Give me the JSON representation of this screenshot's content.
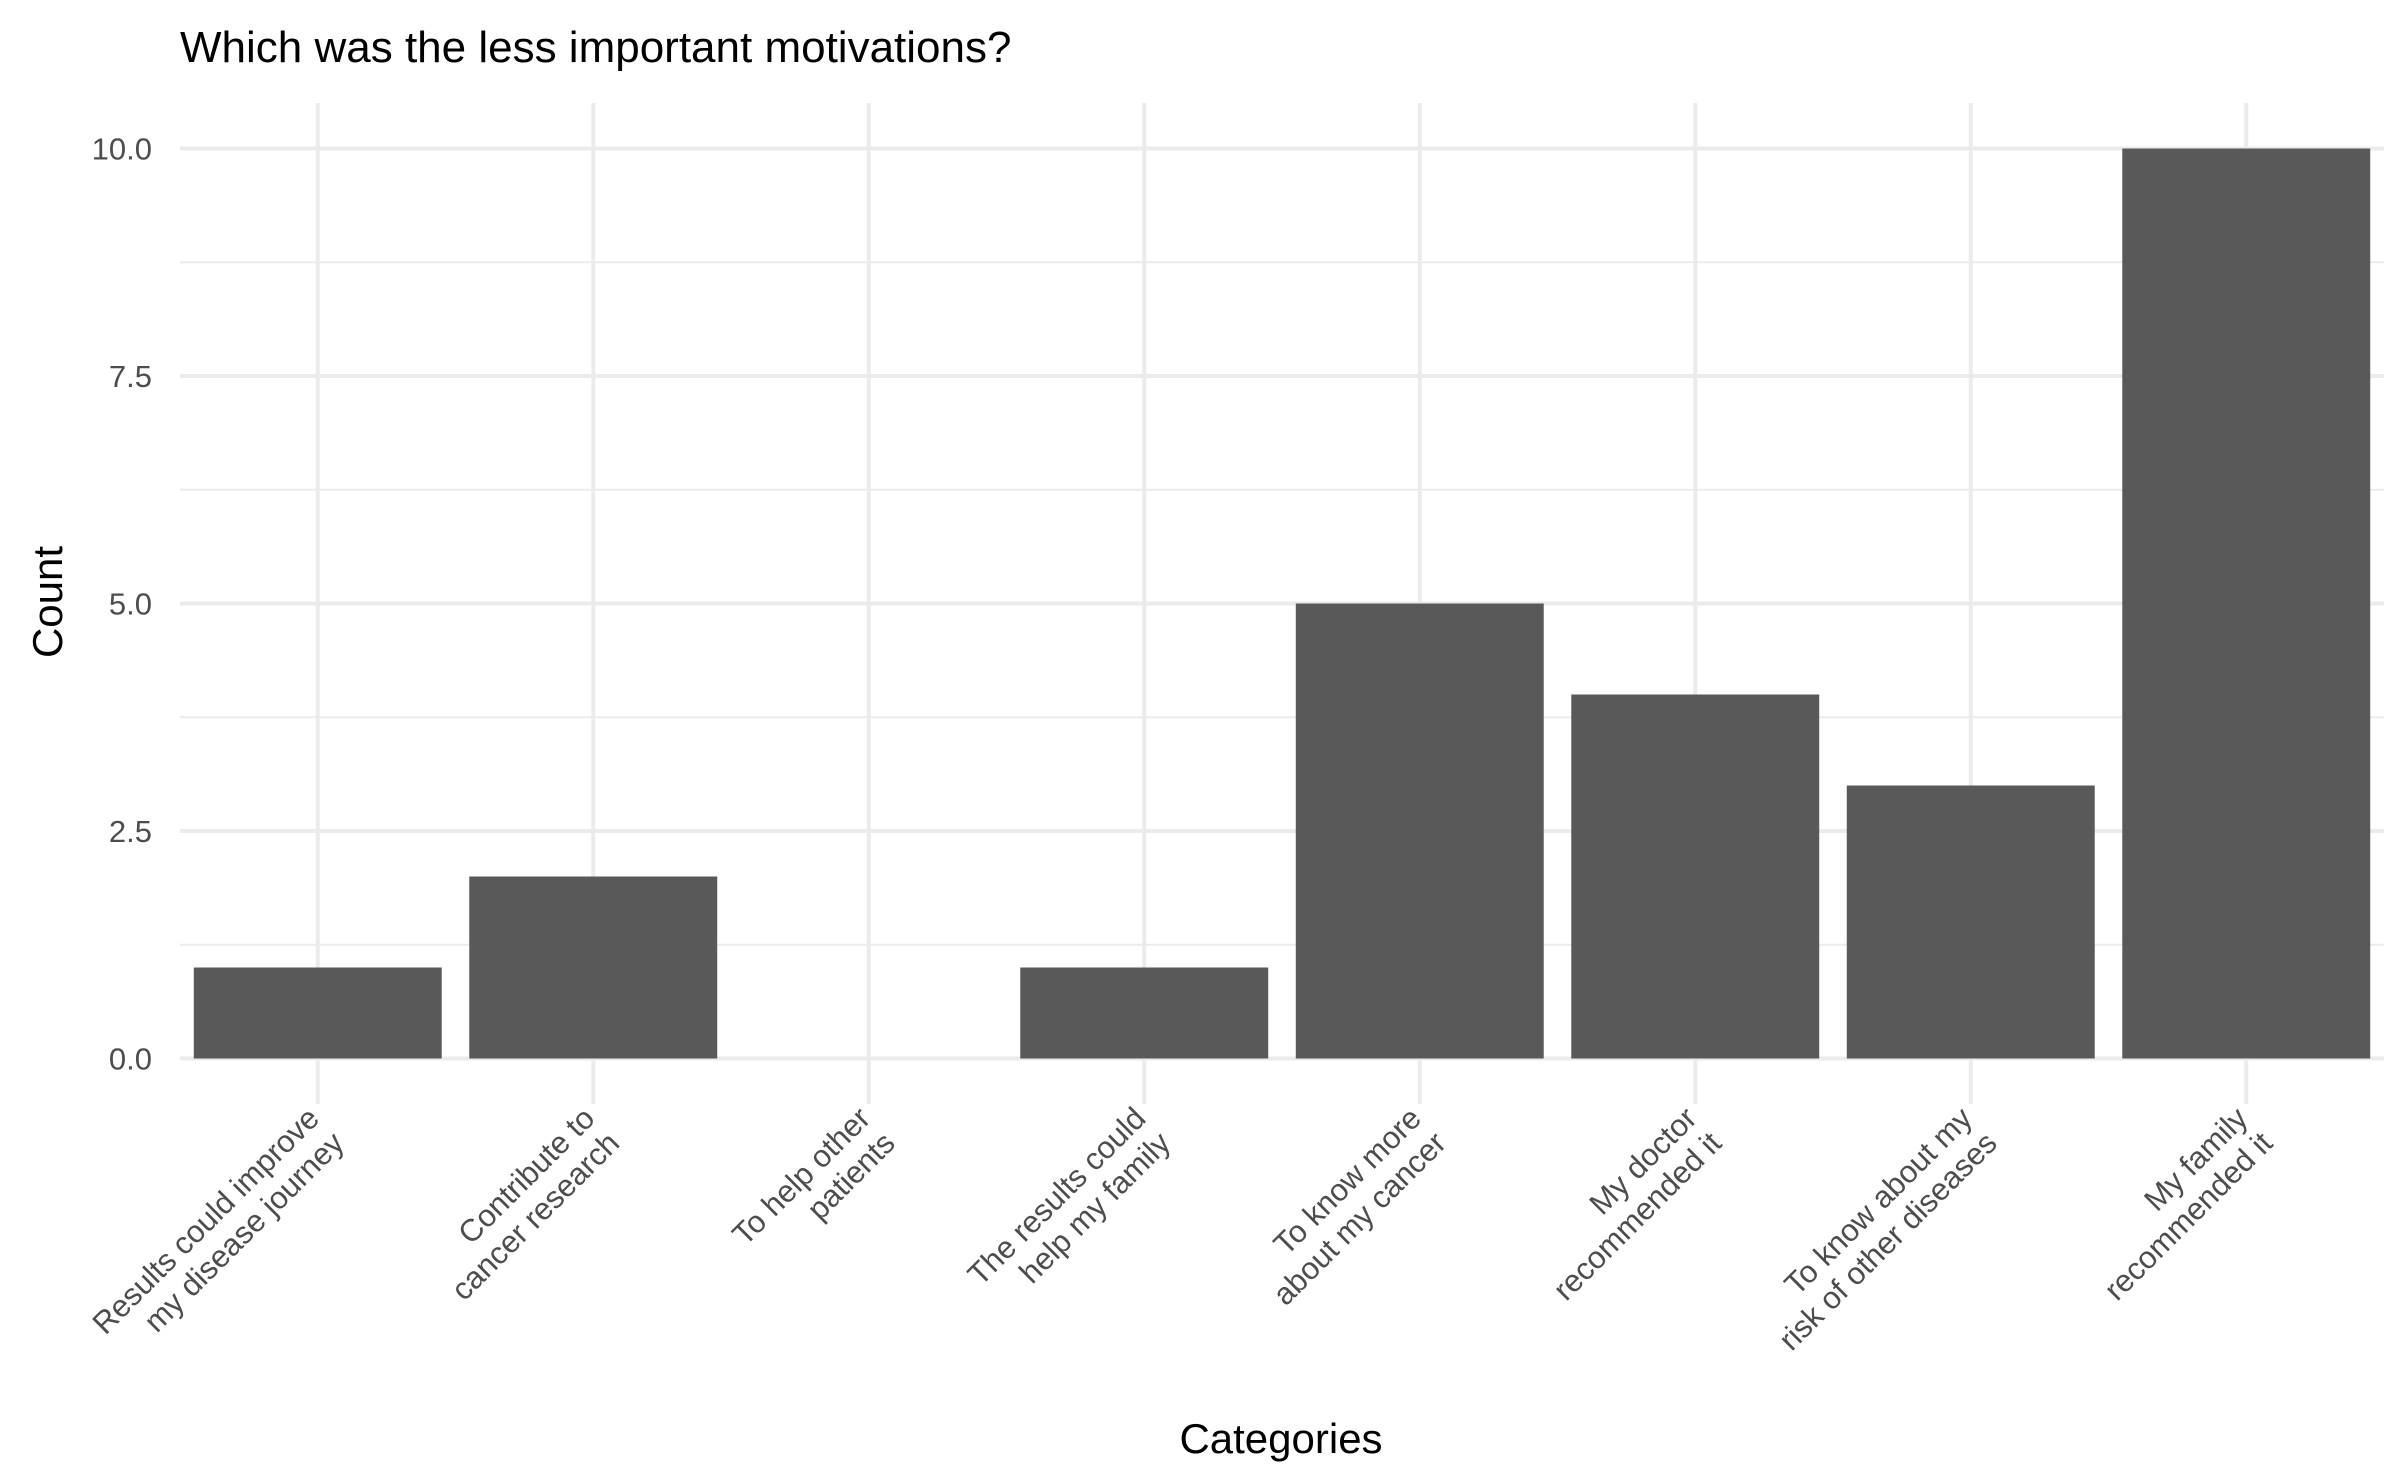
{
  "chart_data": {
    "type": "bar",
    "title": "Which was the less important motivations?",
    "xlabel": "Categories",
    "ylabel": "Count",
    "categories": [
      [
        "Results could improve",
        "my disease journey"
      ],
      [
        "Contribute to",
        "cancer research"
      ],
      [
        "To help other",
        "patients"
      ],
      [
        "The results could",
        "help my family"
      ],
      [
        "To know more",
        "about my cancer"
      ],
      [
        "My doctor",
        "recommended it"
      ],
      [
        "To know about my",
        "risk of other diseases"
      ],
      [
        "My family",
        "recommended it"
      ]
    ],
    "values": [
      1,
      2,
      0,
      1,
      5,
      4,
      3,
      10
    ],
    "ylim": [
      -0.5,
      10.5
    ],
    "yticks": [
      0.0,
      2.5,
      5.0,
      7.5,
      10.0
    ],
    "ytick_labels": [
      "0.0",
      "2.5",
      "5.0",
      "7.5",
      "10.0"
    ],
    "grid": true,
    "bar_color": "#595959",
    "grid_color": "#ebebeb"
  }
}
